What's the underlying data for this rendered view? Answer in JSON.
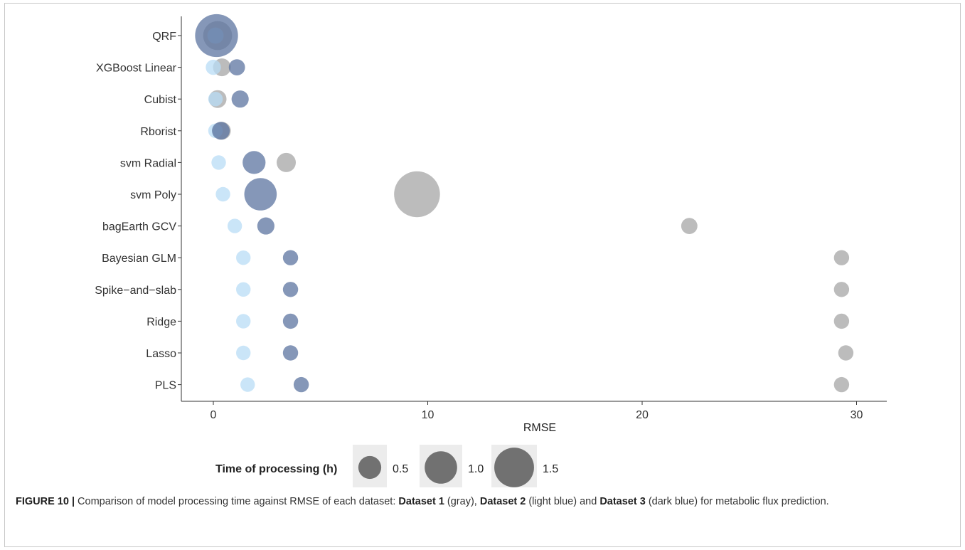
{
  "chart_data": {
    "type": "scatter",
    "xlabel": "RMSE",
    "ylabel": "",
    "xlim": [
      -1.5,
      31.5
    ],
    "x_ticks": [
      0,
      10,
      20,
      30
    ],
    "grid": false,
    "categories": [
      "QRF",
      "XGBoost Linear",
      "Cubist",
      "Rborist",
      "svm Radial",
      "svm Poly",
      "bagEarth GCV",
      "Bayesian GLM",
      "Spike−and−slab",
      "Ridge",
      "Lasso",
      "PLS"
    ],
    "series": [
      {
        "color": "#a6a6a6",
        "points": [
          {
            "model": "QRF",
            "rmse": 0.2,
            "time_h": 0.8
          },
          {
            "model": "XGBoost Linear",
            "rmse": 0.4,
            "time_h": 0.3
          },
          {
            "model": "Cubist",
            "rmse": 0.2,
            "time_h": 0.3
          },
          {
            "model": "Rborist",
            "rmse": 0.4,
            "time_h": 0.3
          },
          {
            "model": "svm Radial",
            "rmse": 3.4,
            "time_h": 0.35
          },
          {
            "model": "svm Poly",
            "rmse": 9.5,
            "time_h": 2.0
          },
          {
            "model": "bagEarth GCV",
            "rmse": 22.2,
            "time_h": 0.25
          },
          {
            "model": "Bayesian GLM",
            "rmse": 29.3,
            "time_h": 0.22
          },
          {
            "model": "Spike−and−slab",
            "rmse": 29.3,
            "time_h": 0.22
          },
          {
            "model": "Ridge",
            "rmse": 29.3,
            "time_h": 0.22
          },
          {
            "model": "Lasso",
            "rmse": 29.5,
            "time_h": 0.22
          },
          {
            "model": "PLS",
            "rmse": 29.3,
            "time_h": 0.22
          }
        ]
      },
      {
        "color": "#b8dcf5",
        "points": [
          {
            "model": "QRF",
            "rmse": 0.1,
            "time_h": 0.25
          },
          {
            "model": "XGBoost Linear",
            "rmse": 0.0,
            "time_h": 0.22
          },
          {
            "model": "Cubist",
            "rmse": 0.1,
            "time_h": 0.2
          },
          {
            "model": "Rborist",
            "rmse": 0.1,
            "time_h": 0.2
          },
          {
            "model": "svm Radial",
            "rmse": 0.25,
            "time_h": 0.2
          },
          {
            "model": "svm Poly",
            "rmse": 0.45,
            "time_h": 0.2
          },
          {
            "model": "bagEarth GCV",
            "rmse": 1.0,
            "time_h": 0.2
          },
          {
            "model": "Bayesian GLM",
            "rmse": 1.4,
            "time_h": 0.2
          },
          {
            "model": "Spike−and−slab",
            "rmse": 1.4,
            "time_h": 0.2
          },
          {
            "model": "Ridge",
            "rmse": 1.4,
            "time_h": 0.2
          },
          {
            "model": "Lasso",
            "rmse": 1.4,
            "time_h": 0.2
          },
          {
            "model": "PLS",
            "rmse": 1.6,
            "time_h": 0.2
          }
        ]
      },
      {
        "color": "#5c74a0",
        "points": [
          {
            "model": "QRF",
            "rmse": 0.15,
            "time_h": 1.75
          },
          {
            "model": "XGBoost Linear",
            "rmse": 1.1,
            "time_h": 0.25
          },
          {
            "model": "Cubist",
            "rmse": 1.25,
            "time_h": 0.28
          },
          {
            "model": "Rborist",
            "rmse": 0.35,
            "time_h": 0.3
          },
          {
            "model": "svm Radial",
            "rmse": 1.9,
            "time_h": 0.5
          },
          {
            "model": "svm Poly",
            "rmse": 2.2,
            "time_h": 1.0
          },
          {
            "model": "bagEarth GCV",
            "rmse": 2.45,
            "time_h": 0.28
          },
          {
            "model": "Bayesian GLM",
            "rmse": 3.6,
            "time_h": 0.22
          },
          {
            "model": "Spike−and−slab",
            "rmse": 3.6,
            "time_h": 0.22
          },
          {
            "model": "Ridge",
            "rmse": 3.6,
            "time_h": 0.22
          },
          {
            "model": "Lasso",
            "rmse": 3.6,
            "time_h": 0.22
          },
          {
            "model": "PLS",
            "rmse": 4.1,
            "time_h": 0.22
          }
        ]
      }
    ],
    "size_legend": {
      "title": "Time of processing (h)",
      "entries": [
        {
          "value": 0.5,
          "label": "0.5"
        },
        {
          "value": 1.0,
          "label": "1.0"
        },
        {
          "value": 1.5,
          "label": "1.5"
        }
      ],
      "placement": "bottom"
    }
  },
  "caption": {
    "figure_label": "FIGURE 10 |",
    "part1": " Comparison of model processing time against RMSE of each dataset: ",
    "d1": "Dataset 1",
    "part2": " (gray), ",
    "d2": "Dataset 2",
    "part3": " (light blue) and ",
    "d3": "Dataset 3",
    "part4": " (dark blue) for metabolic flux prediction."
  }
}
